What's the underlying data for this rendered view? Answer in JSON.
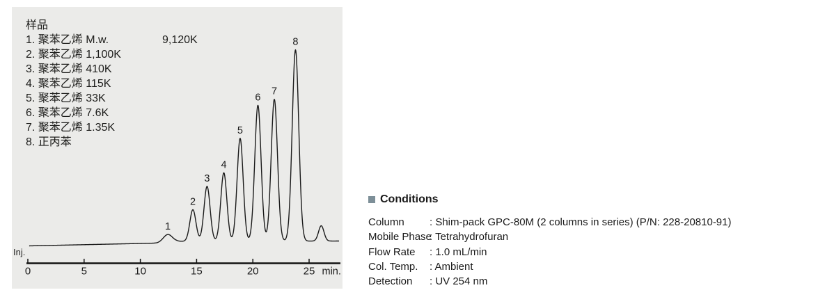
{
  "panel": {
    "bg": "#ebebe9"
  },
  "legend": {
    "title": "样品",
    "items": [
      {
        "label": "1. 聚苯乙烯 M.w.",
        "value": "9,120K"
      },
      {
        "label": "2. 聚苯乙烯 1,100K"
      },
      {
        "label": "3. 聚苯乙烯 410K"
      },
      {
        "label": "4. 聚苯乙烯 115K"
      },
      {
        "label": "5. 聚苯乙烯 33K"
      },
      {
        "label": "6. 聚苯乙烯 7.6K"
      },
      {
        "label": "7. 聚苯乙烯 1.35K"
      },
      {
        "label": "8. 正丙苯"
      }
    ]
  },
  "chromatogram": {
    "inj_label": "Inj."
  },
  "chart_data": {
    "type": "line",
    "title": "",
    "xlabel": "min.",
    "ylabel": "",
    "x_ticks": [
      0,
      5,
      10,
      15,
      20,
      25
    ],
    "x_range": [
      0,
      27.8
    ],
    "grid": false,
    "legend_position": "none",
    "baseline_au": [
      [
        0.12,
        -7
      ],
      [
        11.5,
        -3
      ],
      [
        13.2,
        -0.5
      ],
      [
        27.8,
        0
      ]
    ],
    "peaks": [
      {
        "label": "1",
        "rt_min": 12.44,
        "height_au": 11,
        "sigma_min": 0.4
      },
      {
        "label": "2",
        "rt_min": 14.67,
        "height_au": 45.5,
        "sigma_min": 0.27
      },
      {
        "label": "3",
        "rt_min": 15.93,
        "height_au": 79,
        "sigma_min": 0.27
      },
      {
        "label": "4",
        "rt_min": 17.42,
        "height_au": 98.5,
        "sigma_min": 0.27
      },
      {
        "label": "5",
        "rt_min": 18.87,
        "height_au": 148,
        "sigma_min": 0.27
      },
      {
        "label": "6",
        "rt_min": 20.45,
        "height_au": 195.5,
        "sigma_min": 0.28
      },
      {
        "label": "7",
        "rt_min": 21.91,
        "height_au": 204,
        "sigma_min": 0.28
      },
      {
        "label": "8",
        "rt_min": 23.79,
        "height_au": 275,
        "sigma_min": 0.29
      },
      {
        "label": "",
        "rt_min": 26.08,
        "height_au": 22,
        "sigma_min": 0.24
      }
    ]
  },
  "conditions": {
    "heading": "Conditions",
    "bullet_color": "#7d8f98",
    "rows": [
      {
        "label": "Column",
        "value": ": Shim-pack GPC-80M (2 columns in series) (P/N: 228-20810-91)"
      },
      {
        "label": "Mobile Phase",
        "value": ": Tetrahydrofuran"
      },
      {
        "label": "Flow Rate",
        "value": ": 1.0 mL/min"
      },
      {
        "label": "Col. Temp.",
        "value": ": Ambient"
      },
      {
        "label": "Detection",
        "value": ": UV 254 nm"
      }
    ]
  }
}
